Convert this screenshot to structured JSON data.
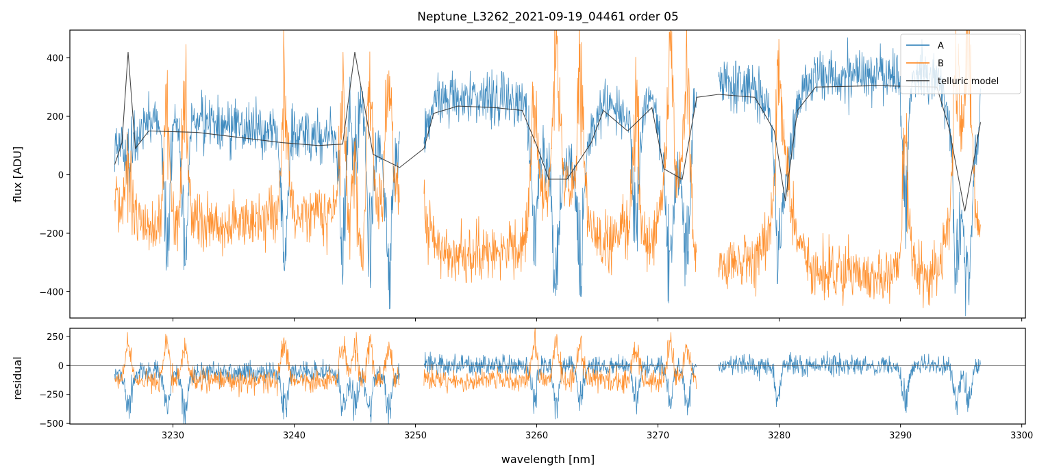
{
  "chart_data": [
    {
      "type": "line",
      "title": "Neptune_L3262_2021-09-19_04461  order 05",
      "xlabel": "",
      "ylabel": "flux [ADU]",
      "xlim": [
        3221.5,
        3300.3
      ],
      "ylim": [
        -490,
        495
      ],
      "yticks": [
        -400,
        -200,
        0,
        200,
        400
      ],
      "ytick_labels": [
        "−400",
        "−200",
        "0",
        "200",
        "400"
      ],
      "xticks": [
        3230,
        3240,
        3250,
        3260,
        3270,
        3280,
        3290,
        3300
      ],
      "legend": {
        "location": "upper right",
        "entries": [
          "A",
          "B",
          "telluric model"
        ]
      },
      "segments": [
        [
          3225.2,
          3248.7
        ],
        [
          3250.7,
          3273.2
        ],
        [
          3275.0,
          3296.6
        ]
      ],
      "series": [
        {
          "name": "A",
          "color": "#1f77b4",
          "note": "noisy flux, approx. +100 to +250 ADU continuum with deep absorption dips"
        },
        {
          "name": "B",
          "color": "#ff7f0e",
          "note": "noisy flux, approx. -100 to -300 ADU continuum with emission spikes"
        },
        {
          "name": "telluric model",
          "color": "#333333",
          "key_points": [
            [
              3225.2,
              35
            ],
            [
              3225.8,
              110
            ],
            [
              3226.3,
              420
            ],
            [
              3226.9,
              90
            ],
            [
              3228.0,
              150
            ],
            [
              3232.0,
              145
            ],
            [
              3236.0,
              125
            ],
            [
              3239.0,
              110
            ],
            [
              3242.0,
              100
            ],
            [
              3244.0,
              105
            ],
            [
              3245.0,
              420
            ],
            [
              3246.5,
              70
            ],
            [
              3248.7,
              25
            ],
            [
              3250.7,
              90
            ],
            [
              3251.5,
              210
            ],
            [
              3253.5,
              235
            ],
            [
              3256.5,
              230
            ],
            [
              3258.8,
              220
            ],
            [
              3260.0,
              100
            ],
            [
              3261.0,
              -15
            ],
            [
              3262.5,
              -15
            ],
            [
              3264.5,
              110
            ],
            [
              3265.5,
              220
            ],
            [
              3267.5,
              150
            ],
            [
              3269.5,
              230
            ],
            [
              3270.5,
              20
            ],
            [
              3272.0,
              -15
            ],
            [
              3273.2,
              265
            ],
            [
              3275.0,
              275
            ],
            [
              3278.0,
              265
            ],
            [
              3279.6,
              150
            ],
            [
              3280.5,
              -90
            ],
            [
              3281.5,
              220
            ],
            [
              3283.0,
              300
            ],
            [
              3288.0,
              305
            ],
            [
              3293.0,
              300
            ],
            [
              3294.0,
              160
            ],
            [
              3295.3,
              -125
            ],
            [
              3296.6,
              180
            ]
          ]
        }
      ]
    },
    {
      "type": "line",
      "title": "",
      "xlabel": "wavelength [nm]",
      "ylabel": "residual",
      "xlim": [
        3221.5,
        3300.3
      ],
      "ylim": [
        -505,
        320
      ],
      "yticks": [
        -500,
        -250,
        0,
        250
      ],
      "ytick_labels": [
        "−500",
        "−250",
        "0",
        "250"
      ],
      "xticks": [
        3230,
        3240,
        3250,
        3260,
        3270,
        3280,
        3290,
        3300
      ],
      "xtick_labels": [
        "3230",
        "3240",
        "3250",
        "3260",
        "3270",
        "3280",
        "3290",
        "3300"
      ],
      "reference_line": 0,
      "series": [
        {
          "name": "A",
          "color": "#1f77b4"
        },
        {
          "name": "B",
          "color": "#ff7f0e"
        }
      ]
    }
  ]
}
